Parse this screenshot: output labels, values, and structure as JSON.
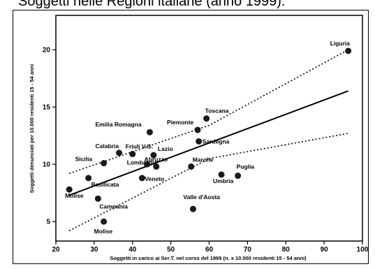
{
  "header": {
    "title": "Soggetti nelle Regioni italiane (anno 1999)."
  },
  "chart_data": {
    "type": "scatter",
    "title": "",
    "xlabel": "Soggetti in carico ai Ser.T. nel corso del 1999 (n. x 10.000 residenti 15 - 54 anni)",
    "ylabel": "Soggetti denunciati per 10.000 residenti 15 - 54 anni",
    "xlim": [
      20,
      100
    ],
    "ylim": [
      3.3,
      23
    ],
    "xticks": [
      20,
      30,
      40,
      50,
      60,
      70,
      80,
      90,
      100
    ],
    "yticks": [
      5,
      10,
      15,
      20
    ],
    "grid": false,
    "points": [
      {
        "label": "Liguria",
        "x": 96.3,
        "y": 19.9
      },
      {
        "label": "Toscana",
        "x": 59.3,
        "y": 14.0
      },
      {
        "label": "Piemonte",
        "x": 57.0,
        "y": 13.0
      },
      {
        "label": "Emilia Romagna",
        "x": 44.5,
        "y": 12.8
      },
      {
        "label": "Sardegna",
        "x": 57.3,
        "y": 12.0
      },
      {
        "label": "Calabria",
        "x": 36.5,
        "y": 11.0
      },
      {
        "label": "Friuli V.G.",
        "x": 40.0,
        "y": 10.9
      },
      {
        "label": "Lazio",
        "x": 45.5,
        "y": 10.8
      },
      {
        "label": "Sicilia",
        "x": 32.5,
        "y": 10.1
      },
      {
        "label": "Abruzzo",
        "x": 43.8,
        "y": 10.0
      },
      {
        "label": "Marche",
        "x": 55.3,
        "y": 9.8
      },
      {
        "label": "Lombardia",
        "x": 46.2,
        "y": 9.8
      },
      {
        "label": "Puglia",
        "x": 67.5,
        "y": 9.0
      },
      {
        "label": "Umbria",
        "x": 63.2,
        "y": 9.1
      },
      {
        "label": "Basilicata",
        "x": 28.5,
        "y": 8.8
      },
      {
        "label": "Veneto",
        "x": 42.5,
        "y": 8.8
      },
      {
        "label": "Molise",
        "x": 23.5,
        "y": 7.8
      },
      {
        "label": "Campania",
        "x": 31.0,
        "y": 7.0
      },
      {
        "label": "Valle d'Aosta",
        "x": 55.8,
        "y": 6.1
      },
      {
        "label": "Molise",
        "x": 32.5,
        "y": 5.0
      }
    ],
    "regression_line": {
      "x": [
        23.5,
        96.3
      ],
      "y": [
        7.3,
        16.4
      ]
    },
    "confidence_upper": {
      "x": [
        23.5,
        60,
        96.3
      ],
      "y": [
        9.2,
        13.4,
        20.0
      ]
    },
    "confidence_lower": {
      "x": [
        23.5,
        60,
        96.3
      ],
      "y": [
        4.2,
        10.5,
        12.7
      ]
    }
  }
}
